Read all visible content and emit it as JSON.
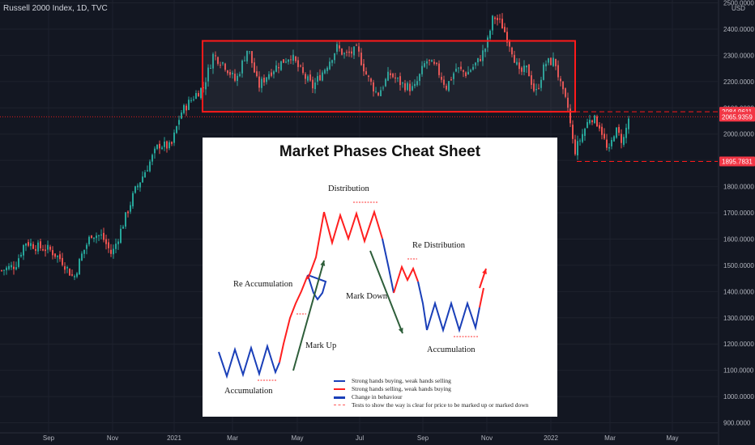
{
  "header": {
    "symbol_title": "Russell 2000 Index, 1D, TVC"
  },
  "price_axis": {
    "currency": "USD",
    "ticks": [
      "2500.0000",
      "2400.0000",
      "2300.0000",
      "2200.0000",
      "2100.0000",
      "2000.0000",
      "1900.0000",
      "1800.0000",
      "1700.0000",
      "1600.0000",
      "1500.0000",
      "1400.0000",
      "1300.0000",
      "1200.0000",
      "1100.0000",
      "1000.0000",
      "900.0000"
    ],
    "badges": [
      {
        "label": "2084.9611",
        "price": 2084.9611
      },
      {
        "label": "2065.9359",
        "price": 2065.9359
      },
      {
        "label": "1895.7831",
        "price": 1895.7831
      }
    ]
  },
  "time_axis": {
    "ticks": [
      "Sep",
      "Nov",
      "2021",
      "Mar",
      "May",
      "Jul",
      "Sep",
      "Nov",
      "2022",
      "Mar",
      "May"
    ]
  },
  "colors": {
    "background": "#131722",
    "up": "#26a69a",
    "down": "#ef5350",
    "box": "#ff1a1a",
    "grid": "#1e222d",
    "badge": "#f23645",
    "accumulation_blue": "#1a3fb8",
    "distribution_red": "#ff1f1f",
    "arrow_green": "#2e5e3a"
  },
  "chart_data": {
    "type": "candlestick",
    "title": "Russell 2000 Index, 1D, TVC",
    "ylim": [
      900,
      2500
    ],
    "y_unit": "USD",
    "x_ticks": [
      "Sep",
      "Nov",
      "2021",
      "Mar",
      "May",
      "Jul",
      "Sep",
      "Nov",
      "2022",
      "Mar",
      "May"
    ],
    "approx_close_path": [
      {
        "t": "Aug 2020",
        "close": 1480
      },
      {
        "t": "Sep 2020",
        "close": 1590
      },
      {
        "t": "Oct 2020",
        "close": 1510
      },
      {
        "t": "Nov 2020",
        "close": 1640
      },
      {
        "t": "Dec 2020",
        "close": 1940
      },
      {
        "t": "Jan 2021",
        "close": 2140
      },
      {
        "t": "Feb 2021",
        "close": 2300
      },
      {
        "t": "Mar 2021",
        "close": 2180
      },
      {
        "t": "Apr 2021",
        "close": 2280
      },
      {
        "t": "May 2021",
        "close": 2200
      },
      {
        "t": "Jun 2021",
        "close": 2320
      },
      {
        "t": "Jul 2021",
        "close": 2200
      },
      {
        "t": "Aug 2021",
        "close": 2250
      },
      {
        "t": "Sep 2021",
        "close": 2220
      },
      {
        "t": "Oct 2021",
        "close": 2300
      },
      {
        "t": "Nov 2021",
        "close": 2450
      },
      {
        "t": "Dec 2021",
        "close": 2230
      },
      {
        "t": "Jan 2022",
        "close": 2020
      },
      {
        "t": "Feb 2022",
        "close": 2050
      },
      {
        "t": "Mar 2022",
        "close": 2085
      }
    ],
    "range_box": {
      "low": 2085,
      "high": 2355,
      "from": "Feb 2021",
      "to": "Jan 2022"
    },
    "horizontal_levels": [
      2084.9611,
      2065.9359,
      1895.7831
    ]
  },
  "cheat_sheet": {
    "title": "Market Phases Cheat Sheet",
    "labels": {
      "distribution": "Distribution",
      "re_distribution": "Re Distribution",
      "re_accumulation": "Re Accumulation",
      "mark_down": "Mark Down",
      "mark_up": "Mark Up",
      "accumulation_left": "Accumulation",
      "accumulation_right": "Accumulation"
    },
    "legend": [
      {
        "text": "Strong hands buying, weak hands selling",
        "color": "#1a3fb8",
        "style": "solid"
      },
      {
        "text": "Strong hands selling, weak hands buying",
        "color": "#ff1f1f",
        "style": "solid"
      },
      {
        "text": "Change in behaviour",
        "color": "#1a3fb8",
        "style": "solid-thick"
      },
      {
        "text": "Tests to show the way is clear for price to be marked up or marked down",
        "color": "#ff5a5a",
        "style": "dashed"
      }
    ]
  }
}
